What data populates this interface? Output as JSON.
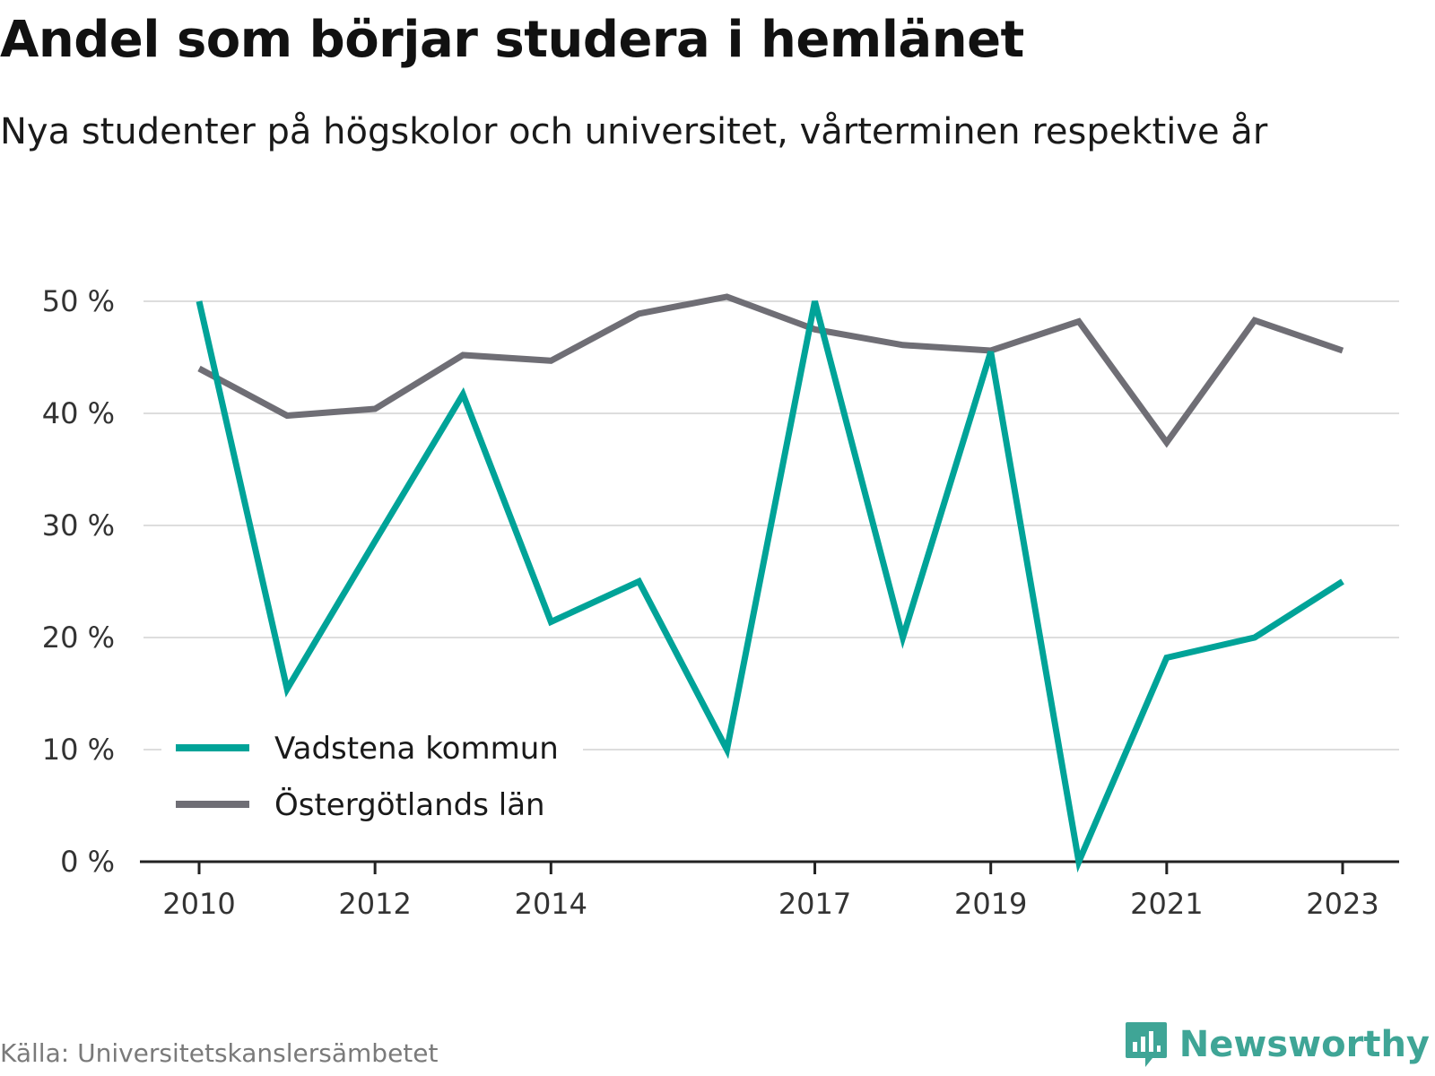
{
  "title": "Andel som börjar studera i hemlänet",
  "subtitle": "Nya studenter på högskolor och universitet, vårterminen respektive år",
  "source": "Källa: Universitetskanslersämbetet",
  "brand": "Newsworthy",
  "colors": {
    "vadstena": "#00a398",
    "ostergotland": "#6f6e75",
    "grid": "#dddddd",
    "brand": "#3fa596"
  },
  "chart_data": {
    "type": "line",
    "title": "Andel som börjar studera i hemlänet",
    "subtitle": "Nya studenter på högskolor och universitet, vårterminen respektive år",
    "x": [
      2010,
      2011,
      2012,
      2013,
      2014,
      2015,
      2016,
      2017,
      2018,
      2019,
      2020,
      2021,
      2022,
      2023
    ],
    "x_tick_labels": [
      "2010",
      "2012",
      "2014",
      "2017",
      "2019",
      "2021",
      "2023"
    ],
    "y_tick_labels": [
      "0 %",
      "10 %",
      "20 %",
      "30 %",
      "40 %",
      "50 %"
    ],
    "y_ticks": [
      0,
      10,
      20,
      30,
      40,
      50
    ],
    "ylim": [
      0,
      50
    ],
    "grid": true,
    "legend_position": "bottom-left",
    "series": [
      {
        "name": "Vadstena kommun",
        "color": "#00a398",
        "values": [
          50.0,
          15.4,
          28.6,
          41.7,
          21.4,
          25.0,
          10.0,
          50.0,
          20.0,
          45.5,
          0.0,
          18.2,
          20.0,
          25.0
        ]
      },
      {
        "name": "Östergötlands län",
        "color": "#6f6e75",
        "values": [
          44.0,
          39.8,
          40.4,
          45.2,
          44.7,
          48.9,
          50.4,
          47.5,
          46.1,
          45.6,
          48.2,
          37.4,
          48.3,
          45.6
        ]
      }
    ]
  }
}
